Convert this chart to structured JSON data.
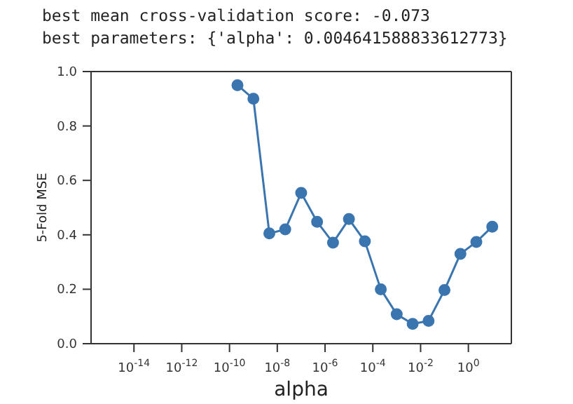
{
  "chart_data": {
    "type": "line",
    "title": "best mean cross-validation score: -0.073",
    "subtitle": "best parameters: {'alpha': 0.004641588833612773}",
    "xlabel": "alpha",
    "ylabel": "5-Fold MSE",
    "log": "x",
    "marker": "circle",
    "line_style": "solid",
    "grid": false,
    "legend": false,
    "x": [
      2.154e-10,
      1e-09,
      4.642e-09,
      2.154e-08,
      1e-07,
      4.642e-07,
      2.154e-06,
      1e-05,
      4.642e-05,
      0.0002154,
      0.001,
      0.004642,
      0.02154,
      0.1,
      0.4642,
      2.154,
      10
    ],
    "series": [
      {
        "color": "#3a75b0",
        "values": [
          0.95,
          0.9,
          0.405,
          0.42,
          0.554,
          0.448,
          0.371,
          0.458,
          0.376,
          0.2,
          0.108,
          0.073,
          0.084,
          0.197,
          0.33,
          0.374,
          0.43
        ]
      }
    ],
    "xlim": [
      1.6e-16,
      63
    ],
    "xticks": [
      {
        "value": 1e-14,
        "label": "10$^{-14}$"
      },
      {
        "value": 1e-12,
        "label": "10$^{-12}$"
      },
      {
        "value": 1e-10,
        "label": "10$^{-10}$"
      },
      {
        "value": 1e-08,
        "label": "10$^{-8}$"
      },
      {
        "value": 1e-06,
        "label": "10$^{-6}$"
      },
      {
        "value": 0.0001,
        "label": "10$^{-4}$"
      },
      {
        "value": 0.01,
        "label": "10$^{-2}$"
      },
      {
        "value": 1,
        "label": "10$^{0}$"
      }
    ],
    "ylim": [
      0,
      1
    ],
    "yticks": [
      {
        "value": 0,
        "label": "0.0"
      },
      {
        "value": 0.2,
        "label": "0.2"
      },
      {
        "value": 0.4,
        "label": "0.4"
      },
      {
        "value": 0.6,
        "label": "0.6"
      },
      {
        "value": 0.8,
        "label": "0.8"
      },
      {
        "value": 1,
        "label": "1.0"
      }
    ]
  }
}
